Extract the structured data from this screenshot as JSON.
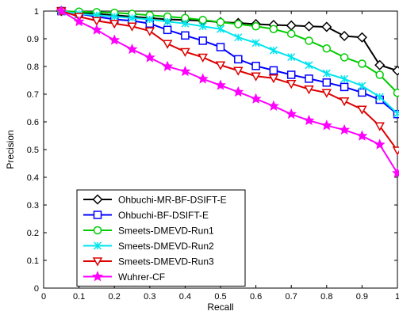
{
  "chart_data": {
    "type": "line",
    "title": "",
    "xlabel": "Recall",
    "ylabel": "Precision",
    "xlim": [
      0,
      1
    ],
    "ylim": [
      0,
      1
    ],
    "xticks": [
      "0",
      "0.1",
      "0.2",
      "0.3",
      "0.4",
      "0.5",
      "0.6",
      "0.7",
      "0.8",
      "0.9",
      "1"
    ],
    "yticks": [
      "0",
      "0.1",
      "0.2",
      "0.3",
      "0.4",
      "0.5",
      "0.6",
      "0.7",
      "0.8",
      "0.9",
      "1"
    ],
    "grid": false,
    "legend_position": "lower-left",
    "x": [
      0.05,
      0.1,
      0.15,
      0.2,
      0.25,
      0.3,
      0.35,
      0.4,
      0.45,
      0.5,
      0.55,
      0.6,
      0.65,
      0.7,
      0.75,
      0.8,
      0.85,
      0.9,
      0.95,
      1.0
    ],
    "series": [
      {
        "name": "Ohbuchi-MR-BF-DSIFT-E",
        "color": "#000000",
        "marker": "diamond",
        "values": [
          1.0,
          0.995,
          0.99,
          0.985,
          0.98,
          0.975,
          0.97,
          0.968,
          0.965,
          0.96,
          0.957,
          0.953,
          0.95,
          0.948,
          0.945,
          0.943,
          0.91,
          0.905,
          0.805,
          0.785
        ]
      },
      {
        "name": "Ohbuchi-BF-DSIFT-E",
        "color": "#0000ff",
        "marker": "square",
        "values": [
          1.0,
          0.99,
          0.98,
          0.97,
          0.965,
          0.955,
          0.932,
          0.912,
          0.893,
          0.87,
          0.826,
          0.802,
          0.786,
          0.77,
          0.756,
          0.742,
          0.726,
          0.706,
          0.68,
          0.628
        ]
      },
      {
        "name": "Smeets-DMEVD-Run1",
        "color": "#00cc00",
        "marker": "circle",
        "values": [
          1.0,
          0.998,
          0.996,
          0.994,
          0.99,
          0.985,
          0.98,
          0.975,
          0.968,
          0.96,
          0.953,
          0.945,
          0.935,
          0.918,
          0.893,
          0.865,
          0.833,
          0.81,
          0.77,
          0.705
        ]
      },
      {
        "name": "Smeets-DMEVD-Run2",
        "color": "#00e5ee",
        "marker": "x",
        "values": [
          1.0,
          0.99,
          0.985,
          0.98,
          0.975,
          0.97,
          0.962,
          0.955,
          0.945,
          0.935,
          0.905,
          0.885,
          0.858,
          0.834,
          0.805,
          0.775,
          0.755,
          0.73,
          0.69,
          0.63
        ]
      },
      {
        "name": "Smeets-DMEVD-Run3",
        "color": "#dd0000",
        "marker": "triangle-down",
        "values": [
          1.0,
          0.98,
          0.965,
          0.955,
          0.945,
          0.928,
          0.882,
          0.853,
          0.833,
          0.805,
          0.785,
          0.765,
          0.758,
          0.738,
          0.718,
          0.705,
          0.675,
          0.645,
          0.585,
          0.497
        ]
      },
      {
        "name": "Wuhrer-CF",
        "color": "#ff00ff",
        "marker": "star",
        "values": [
          1.0,
          0.962,
          0.932,
          0.895,
          0.862,
          0.832,
          0.8,
          0.782,
          0.755,
          0.732,
          0.708,
          0.683,
          0.657,
          0.628,
          0.605,
          0.587,
          0.571,
          0.549,
          0.518,
          0.415
        ]
      }
    ]
  }
}
